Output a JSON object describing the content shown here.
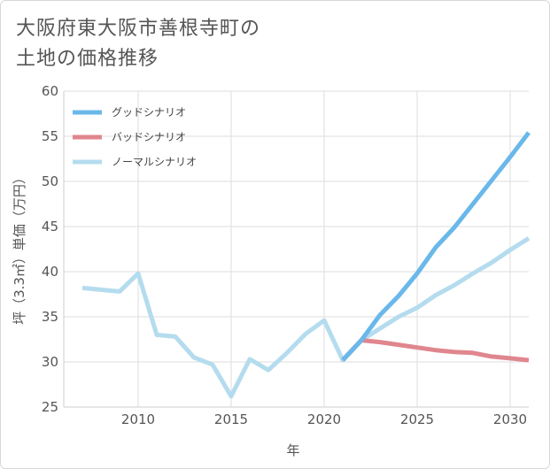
{
  "title_line1": "大阪府東大阪市善根寺町の",
  "title_line2": "土地の価格推移",
  "chart_data": {
    "type": "line",
    "xlabel": "年",
    "ylabel": "坪（3.3㎡）単価（万円）",
    "xlim": [
      2006,
      2031
    ],
    "ylim": [
      25,
      60
    ],
    "xticks": [
      2010,
      2015,
      2020,
      2025,
      2030
    ],
    "yticks": [
      25,
      30,
      35,
      40,
      45,
      50,
      55,
      60
    ],
    "grid": true,
    "legend_position": "top-left",
    "series": [
      {
        "name": "グッドシナリオ",
        "color": "#6ab8ea",
        "x": [
          2021,
          2022,
          2023,
          2024,
          2025,
          2026,
          2027,
          2028,
          2029,
          2030,
          2031
        ],
        "values": [
          30.2,
          32.4,
          35.2,
          37.3,
          39.8,
          42.7,
          44.9,
          47.5,
          50.1,
          52.7,
          55.4
        ]
      },
      {
        "name": "バッドシナリオ",
        "color": "#e0868e",
        "x": [
          2021,
          2022,
          2023,
          2024,
          2025,
          2026,
          2027,
          2028,
          2029,
          2030,
          2031
        ],
        "values": [
          30.2,
          32.4,
          32.2,
          31.9,
          31.6,
          31.3,
          31.1,
          31.0,
          30.6,
          30.4,
          30.2
        ]
      },
      {
        "name": "ノーマルシナリオ",
        "color": "#b4dcee",
        "x": [
          2007,
          2008,
          2009,
          2010,
          2011,
          2012,
          2013,
          2014,
          2015,
          2016,
          2017,
          2018,
          2019,
          2020,
          2021,
          2022,
          2023,
          2024,
          2025,
          2026,
          2027,
          2028,
          2029,
          2030,
          2031
        ],
        "values": [
          38.2,
          38.0,
          37.8,
          39.8,
          33.0,
          32.8,
          30.5,
          29.7,
          26.2,
          30.3,
          29.1,
          31.0,
          33.1,
          34.6,
          30.2,
          32.4,
          33.7,
          35.0,
          36.0,
          37.4,
          38.5,
          39.8,
          41.0,
          42.4,
          43.7
        ]
      }
    ]
  }
}
